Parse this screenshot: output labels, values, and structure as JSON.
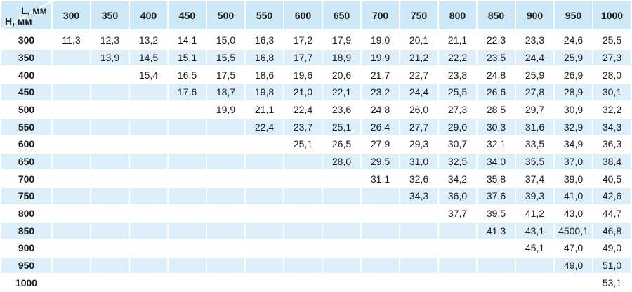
{
  "chart_data": {
    "type": "table",
    "title": "",
    "corner": {
      "col_axis_label": "L, мм",
      "row_axis_label": "H, мм"
    },
    "columns": [
      "300",
      "350",
      "400",
      "450",
      "500",
      "550",
      "600",
      "650",
      "700",
      "750",
      "800",
      "850",
      "900",
      "950",
      "1000"
    ],
    "rows": [
      {
        "label": "300",
        "values": [
          "11,3",
          "12,3",
          "13,2",
          "14,1",
          "15,0",
          "16,3",
          "17,2",
          "17,9",
          "19,0",
          "20,1",
          "21,1",
          "22,3",
          "23,3",
          "24,6",
          "25,5"
        ]
      },
      {
        "label": "350",
        "values": [
          "",
          "13,9",
          "14,5",
          "15,1",
          "15,5",
          "16,8",
          "17,7",
          "18,9",
          "19,9",
          "21,2",
          "22,2",
          "23,5",
          "24,4",
          "25,9",
          "27,3"
        ]
      },
      {
        "label": "400",
        "values": [
          "",
          "",
          "15,4",
          "16,5",
          "17,5",
          "18,6",
          "19,6",
          "20,6",
          "21,7",
          "22,7",
          "23,8",
          "24,8",
          "25,9",
          "26,9",
          "28,0"
        ]
      },
      {
        "label": "450",
        "values": [
          "",
          "",
          "",
          "17,6",
          "18,7",
          "19,8",
          "21,0",
          "22,1",
          "23,2",
          "24,4",
          "25,5",
          "26,6",
          "27,8",
          "28,9",
          "30,1"
        ]
      },
      {
        "label": "500",
        "values": [
          "",
          "",
          "",
          "",
          "19,9",
          "21,1",
          "22,4",
          "23,6",
          "24,8",
          "26,0",
          "27,3",
          "28,5",
          "29,7",
          "30,9",
          "32,2"
        ]
      },
      {
        "label": "550",
        "values": [
          "",
          "",
          "",
          "",
          "",
          "22,4",
          "23,7",
          "25,1",
          "26,4",
          "27,7",
          "29,0",
          "30,3",
          "31,6",
          "32,9",
          "34,3"
        ]
      },
      {
        "label": "600",
        "values": [
          "",
          "",
          "",
          "",
          "",
          "",
          "25,1",
          "26,5",
          "27,9",
          "29,3",
          "30,7",
          "32,1",
          "33,5",
          "34,9",
          "36,3"
        ]
      },
      {
        "label": "650",
        "values": [
          "",
          "",
          "",
          "",
          "",
          "",
          "",
          "28,0",
          "29,5",
          "31,0",
          "32,5",
          "34,0",
          "35,5",
          "37,0",
          "38,4"
        ]
      },
      {
        "label": "700",
        "values": [
          "",
          "",
          "",
          "",
          "",
          "",
          "",
          "",
          "31,1",
          "32,6",
          "34,2",
          "35,8",
          "37,4",
          "39,0",
          "40,5"
        ]
      },
      {
        "label": "750",
        "values": [
          "",
          "",
          "",
          "",
          "",
          "",
          "",
          "",
          "",
          "34,3",
          "36,0",
          "37,6",
          "39,3",
          "41,0",
          "42,6"
        ]
      },
      {
        "label": "800",
        "values": [
          "",
          "",
          "",
          "",
          "",
          "",
          "",
          "",
          "",
          "",
          "37,7",
          "39,5",
          "41,2",
          "43,0",
          "44,7"
        ]
      },
      {
        "label": "850",
        "values": [
          "",
          "",
          "",
          "",
          "",
          "",
          "",
          "",
          "",
          "",
          "",
          "41,3",
          "43,1",
          "4500,1",
          "46,8"
        ]
      },
      {
        "label": "900",
        "values": [
          "",
          "",
          "",
          "",
          "",
          "",
          "",
          "",
          "",
          "",
          "",
          "",
          "45,1",
          "47,0",
          "49,0"
        ]
      },
      {
        "label": "950",
        "values": [
          "",
          "",
          "",
          "",
          "",
          "",
          "",
          "",
          "",
          "",
          "",
          "",
          "",
          "49,0",
          "51,0"
        ]
      },
      {
        "label": "1000",
        "values": [
          "",
          "",
          "",
          "",
          "",
          "",
          "",
          "",
          "",
          "",
          "",
          "",
          "",
          "",
          "53,1"
        ]
      }
    ]
  },
  "colors": {
    "header_bg": "#cde8f7",
    "alt_row_bg": "#ddeffa",
    "separator": "#ffffff",
    "text": "#1b1b1b"
  }
}
